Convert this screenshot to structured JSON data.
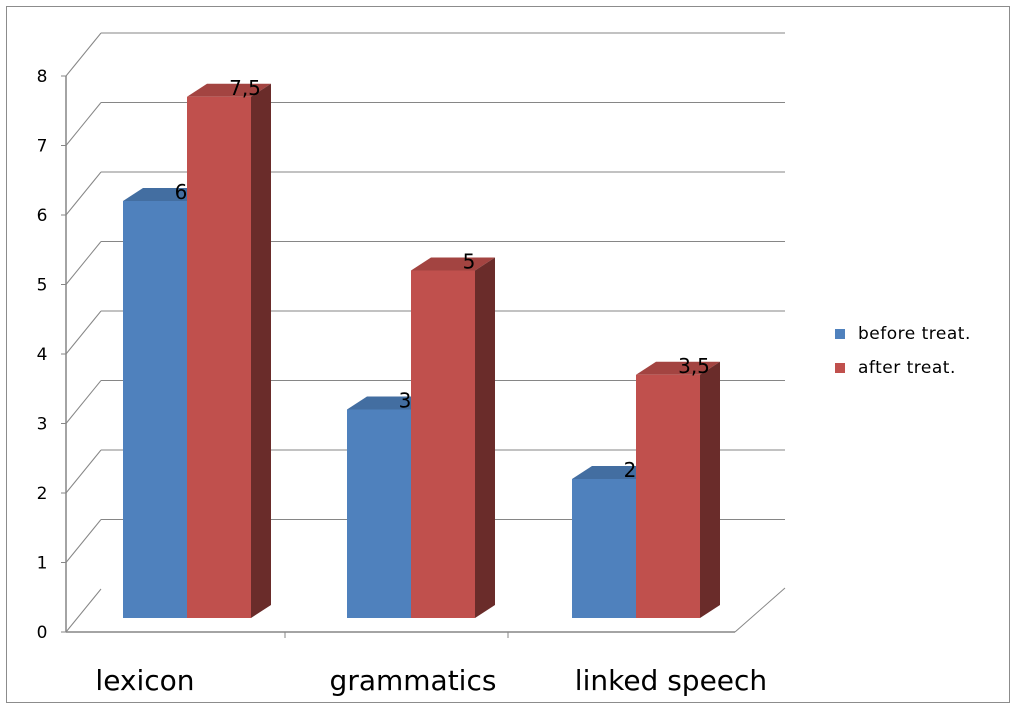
{
  "chart_data": {
    "type": "bar",
    "style": "3d-clustered-column",
    "categories": [
      "lexicon",
      "grammatics",
      "linked speech"
    ],
    "series": [
      {
        "name": "before treat.",
        "values": [
          6,
          3,
          2
        ],
        "labels": [
          "6",
          "3",
          "2"
        ],
        "color": "#4f81bd"
      },
      {
        "name": "after treat.",
        "values": [
          7.5,
          5,
          3.5
        ],
        "labels": [
          "7,5",
          "5",
          "3,5"
        ],
        "color": "#c0504d"
      }
    ],
    "yticks": [
      "0",
      "1",
      "2",
      "3",
      "4",
      "5",
      "6",
      "7",
      "8"
    ],
    "ylim": [
      0,
      8
    ],
    "grid": true,
    "legend": "right"
  }
}
